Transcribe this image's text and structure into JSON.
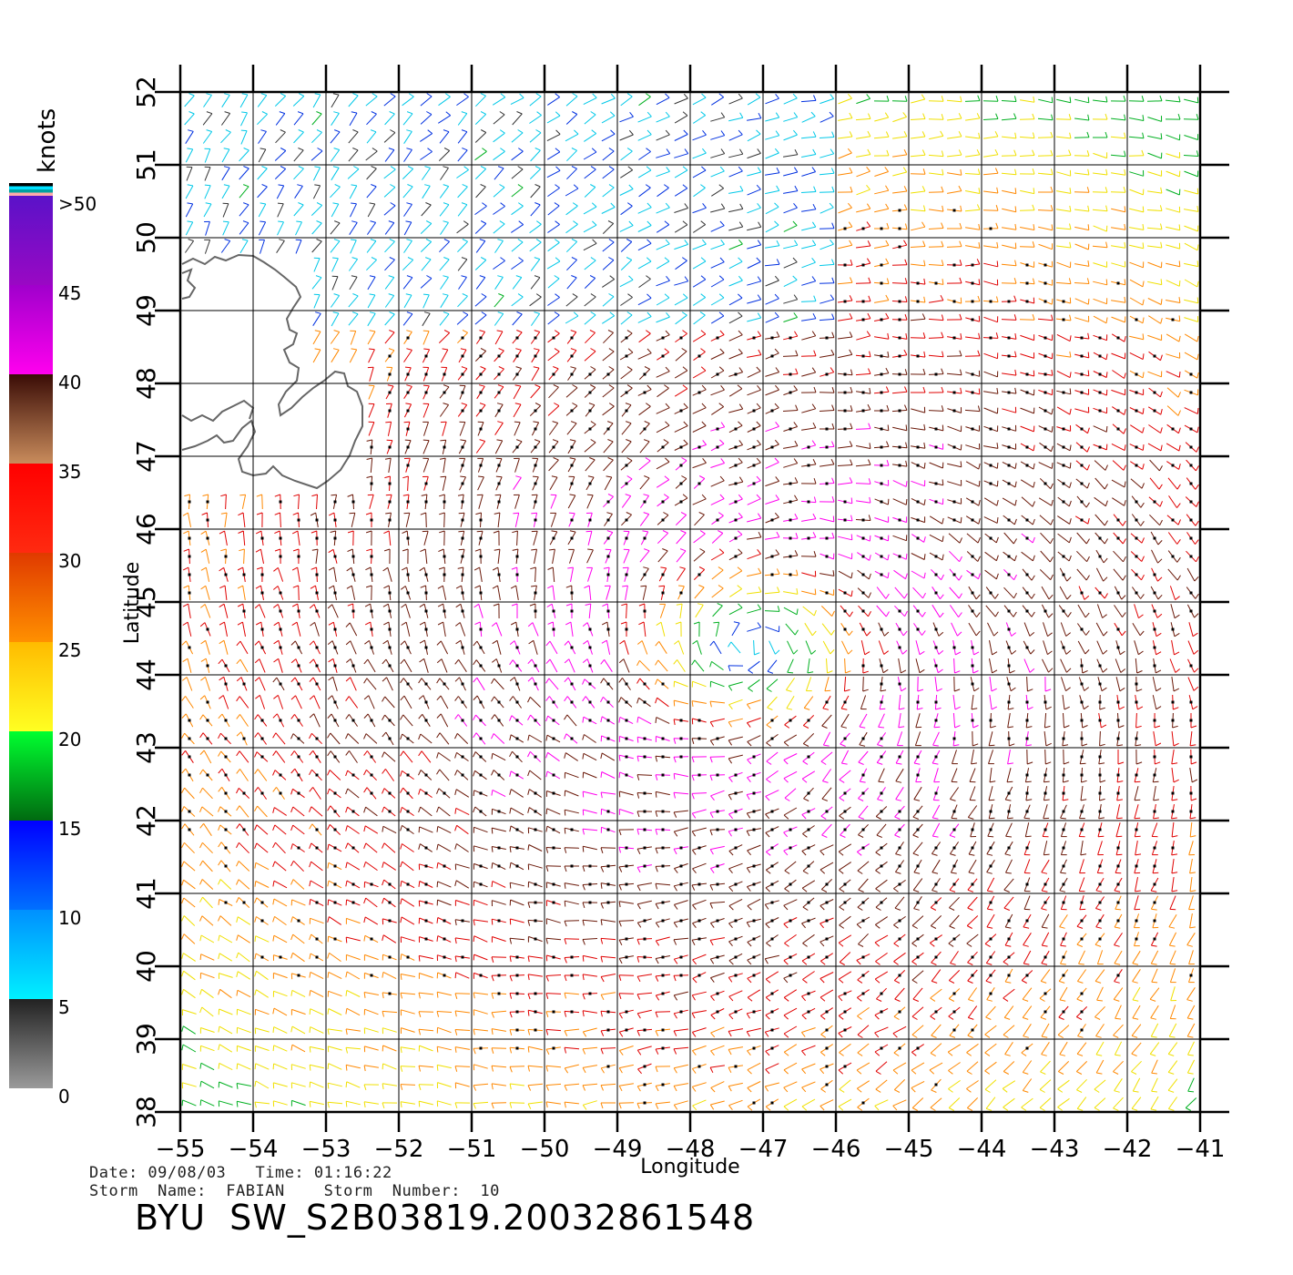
{
  "colorbar": {
    "unit": "knots",
    "labels": [
      ">50",
      "45",
      "40",
      "35",
      "30",
      "25",
      "20",
      "15",
      "10",
      "5",
      "0"
    ],
    "bands": [
      {
        "from": 45,
        "to": 50,
        "top": "#5a12c8",
        "bottom": "#9a08c4"
      },
      {
        "from": 40,
        "to": 45,
        "top": "#a000cc",
        "bottom": "#ff00ee"
      },
      {
        "from": 35,
        "to": 40,
        "top": "#3a0c06",
        "bottom": "#c98c5c"
      },
      {
        "from": 30,
        "to": 35,
        "top": "#ff0000",
        "bottom": "#ff2a10"
      },
      {
        "from": 25,
        "to": 30,
        "top": "#e03a00",
        "bottom": "#ff9000"
      },
      {
        "from": 20,
        "to": 25,
        "top": "#ffbb00",
        "bottom": "#ffff22"
      },
      {
        "from": 15,
        "to": 20,
        "top": "#00ff30",
        "bottom": "#006a10"
      },
      {
        "from": 10,
        "to": 15,
        "top": "#0000ff",
        "bottom": "#0070ff"
      },
      {
        "from": 5,
        "to": 10,
        "top": "#0090ff",
        "bottom": "#00f0ff"
      },
      {
        "from": 0,
        "to": 5,
        "top": "#222222",
        "bottom": "#9a9a9a"
      }
    ],
    "top_stripes": [
      "#000000",
      "#00e0ff",
      "#00a0a0",
      "#ffaaaa"
    ]
  },
  "map": {
    "lat_range": [
      38,
      52
    ],
    "lon_range": [
      -55,
      -41
    ],
    "lat_ticks": [
      "52",
      "51",
      "50",
      "49",
      "48",
      "47",
      "46",
      "45",
      "44",
      "43",
      "42",
      "41",
      "40",
      "39",
      "38"
    ],
    "lon_ticks": [
      "−55",
      "−54",
      "−53",
      "−52",
      "−51",
      "−50",
      "−49",
      "−48",
      "−47",
      "−46",
      "−45",
      "−44",
      "−43",
      "−42",
      "−41"
    ],
    "xlabel": "Longitude",
    "ylabel": "Latitude",
    "grid": true,
    "storm_center": {
      "lat": 44.4,
      "lon": -47.2
    },
    "land": "Newfoundland",
    "wind_barb_colors": {
      "0-5": "#333333",
      "5-10": "#00c8e8",
      "10-15": "#0030e0",
      "15-20": "#00b020",
      "20-25": "#f0e000",
      "25-30": "#ff8800",
      "30-35": "#e00000",
      "35-40": "#6a1808",
      "40-45": "#ff00ee",
      "45-50": "#8a00cc"
    }
  },
  "footer": {
    "date_line": "Date: 09/08/03   Time: 01:16:22",
    "storm_line": "Storm  Name:  FABIAN    Storm  Number:  10",
    "product_id": "BYU  SW_S2B03819.20032861548"
  }
}
